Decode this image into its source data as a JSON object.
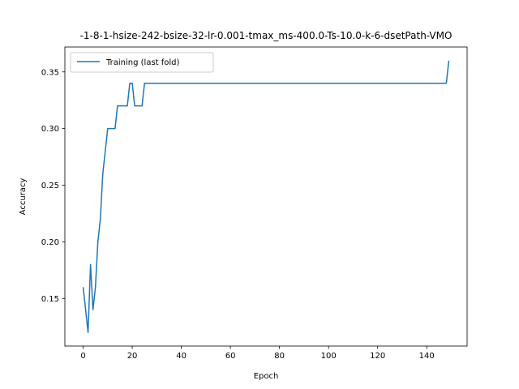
{
  "chart_data": {
    "type": "line",
    "title": "-1-8-1-hsize-242-bsize-32-lr-0.001-tmax_ms-400.0-Ts-10.0-k-6-dsetPath-VMO",
    "xlabel": "Epoch",
    "ylabel": "Accuracy",
    "xlim": [
      -7.45,
      156.45
    ],
    "ylim": [
      0.108,
      0.372
    ],
    "xticks": [
      0,
      20,
      40,
      60,
      80,
      100,
      120,
      140
    ],
    "yticks": [
      0.15,
      0.2,
      0.25,
      0.3,
      0.35
    ],
    "ytick_labels": [
      "0.15",
      "0.20",
      "0.25",
      "0.30",
      "0.35"
    ],
    "legend_position": "upper-left",
    "grid": false,
    "series": [
      {
        "name": "Training (last fold)",
        "color": "#1f77b4",
        "x": [
          0,
          1,
          2,
          3,
          4,
          5,
          6,
          7,
          8,
          9,
          10,
          11,
          12,
          13,
          14,
          15,
          16,
          17,
          18,
          19,
          20,
          21,
          22,
          23,
          24,
          25,
          148,
          149
        ],
        "y": [
          0.16,
          0.14,
          0.12,
          0.18,
          0.14,
          0.16,
          0.2,
          0.22,
          0.26,
          0.28,
          0.3,
          0.3,
          0.3,
          0.3,
          0.32,
          0.32,
          0.32,
          0.32,
          0.32,
          0.34,
          0.34,
          0.32,
          0.32,
          0.32,
          0.32,
          0.34,
          0.34,
          0.36
        ]
      }
    ]
  }
}
